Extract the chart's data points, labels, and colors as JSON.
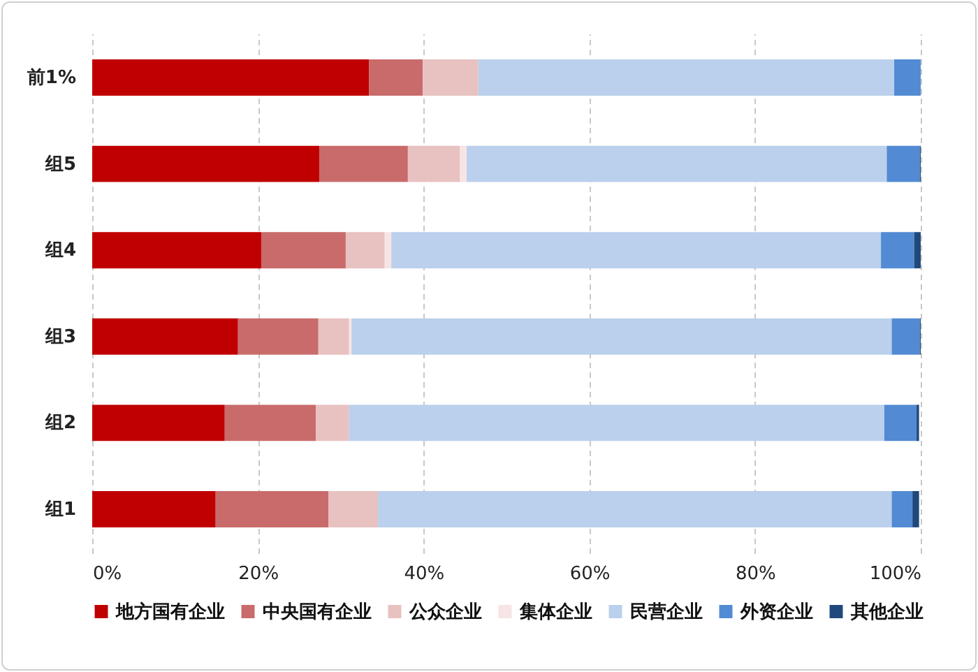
{
  "chart_data": {
    "type": "bar",
    "orientation": "horizontal",
    "stacked": true,
    "categories": [
      "前1%",
      "组5",
      "组4",
      "组3",
      "组2",
      "组1"
    ],
    "series": [
      {
        "name": "地方国有企业",
        "color": "#c00000",
        "values": [
          33.4,
          27.4,
          20.4,
          17.6,
          16.0,
          14.9
        ]
      },
      {
        "name": "中央国有企业",
        "color": "#c96b6b",
        "values": [
          6.5,
          10.7,
          10.2,
          9.7,
          11.0,
          13.6
        ]
      },
      {
        "name": "公众企业",
        "color": "#e8c1c1",
        "values": [
          6.7,
          6.3,
          4.7,
          3.7,
          4.0,
          6.0
        ]
      },
      {
        "name": "集体企业",
        "color": "#f7e4e4",
        "values": [
          0,
          0.8,
          0.8,
          0.3,
          null,
          null
        ]
      },
      {
        "name": "民营企业",
        "color": "#bad0ec",
        "values": [
          50.2,
          50.7,
          59.1,
          65.2,
          64.6,
          62.0
        ]
      },
      {
        "name": "外资企业",
        "color": "#528bd3",
        "values": [
          3.2,
          4.0,
          4.0,
          3.4,
          3.9,
          2.5
        ]
      },
      {
        "name": "其他企业",
        "color": "#1f497d",
        "values": [
          0,
          0.1,
          0.8,
          0.1,
          0.3,
          0.8
        ]
      }
    ],
    "xlim": [
      0,
      100
    ],
    "xticks": [
      {
        "value": 0,
        "label": "0%"
      },
      {
        "value": 20,
        "label": "20%"
      },
      {
        "value": 40,
        "label": "40%"
      },
      {
        "value": 60,
        "label": "60%"
      },
      {
        "value": 80,
        "label": "80%"
      },
      {
        "value": 100,
        "label": "100%"
      }
    ],
    "grid": "x",
    "legend": "bottom"
  }
}
